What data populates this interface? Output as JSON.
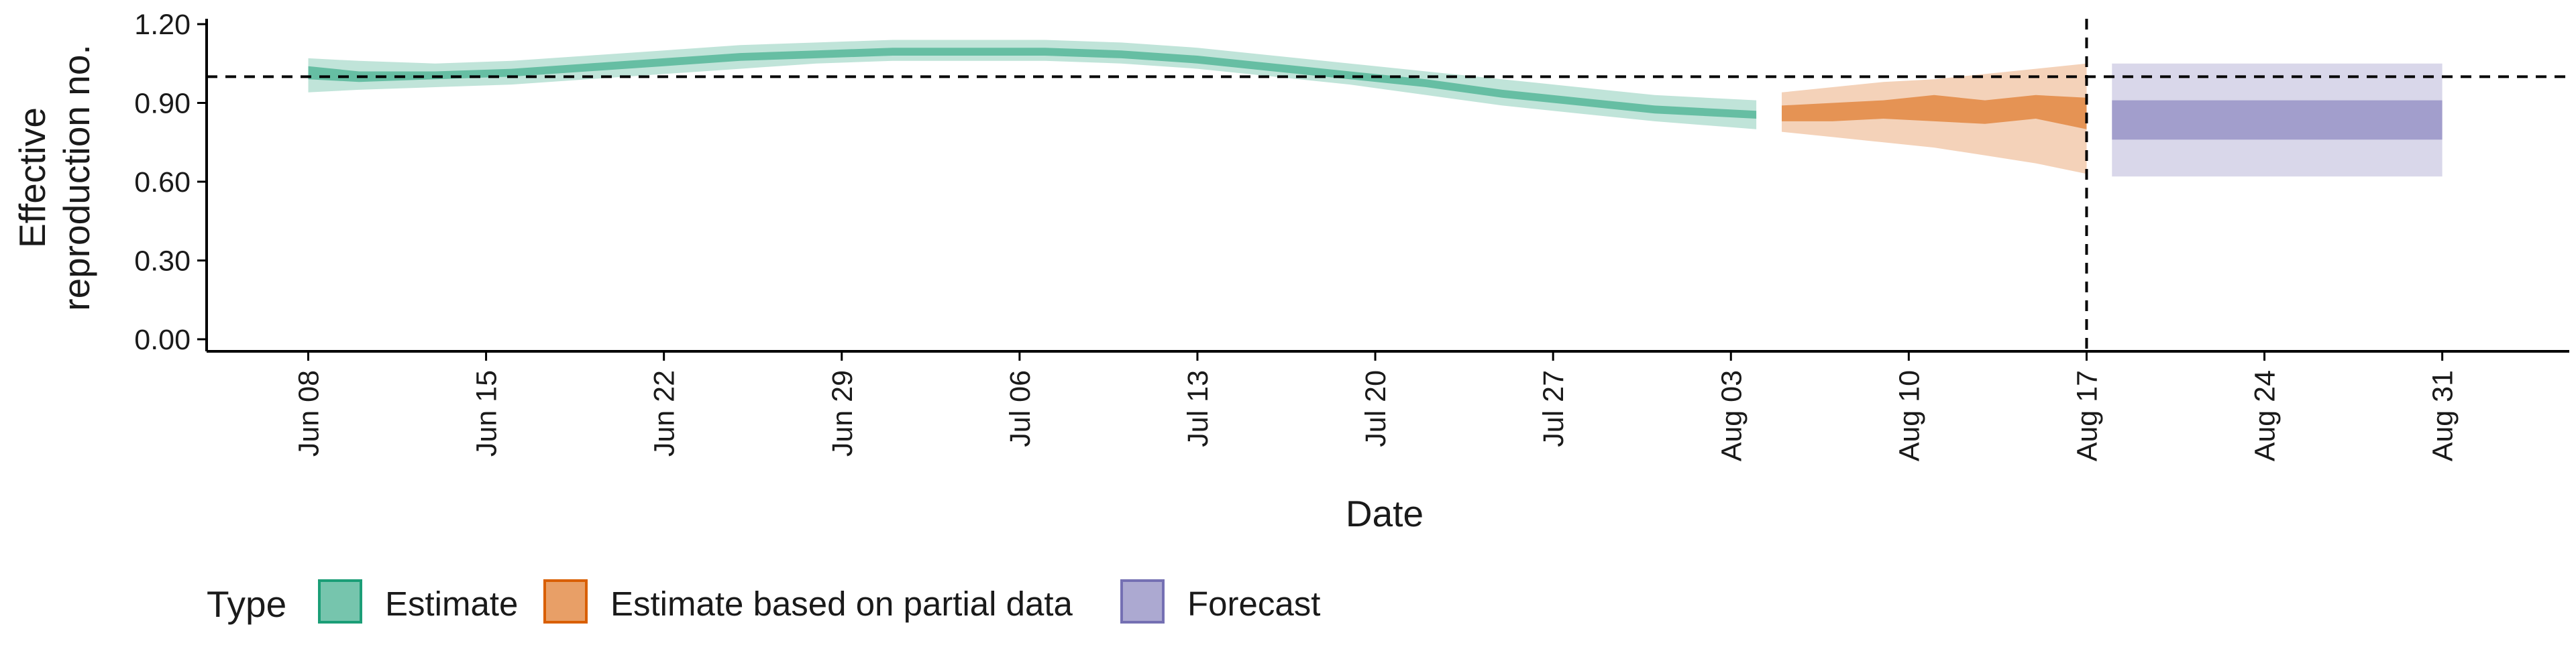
{
  "chart_data": {
    "type": "area",
    "xlabel": "Date",
    "ylabel": [
      "Effective",
      "reproduction no."
    ],
    "ylim": [
      0,
      1.2
    ],
    "y_ticks": [
      "0.00",
      "0.30",
      "0.60",
      "0.90",
      "1.20"
    ],
    "x_ticks": [
      {
        "date": "2020-06-08",
        "label": "Jun 08"
      },
      {
        "date": "2020-06-15",
        "label": "Jun 15"
      },
      {
        "date": "2020-06-22",
        "label": "Jun 22"
      },
      {
        "date": "2020-06-29",
        "label": "Jun 29"
      },
      {
        "date": "2020-07-06",
        "label": "Jul 06"
      },
      {
        "date": "2020-07-13",
        "label": "Jul 13"
      },
      {
        "date": "2020-07-20",
        "label": "Jul 20"
      },
      {
        "date": "2020-07-27",
        "label": "Jul 27"
      },
      {
        "date": "2020-08-03",
        "label": "Aug 03"
      },
      {
        "date": "2020-08-10",
        "label": "Aug 10"
      },
      {
        "date": "2020-08-17",
        "label": "Aug 17"
      },
      {
        "date": "2020-08-24",
        "label": "Aug 24"
      },
      {
        "date": "2020-08-31",
        "label": "Aug 31"
      }
    ],
    "x_range": [
      "2020-06-04",
      "2020-09-05"
    ],
    "reference_hline": 1.0,
    "reference_vline": "2020-08-17",
    "grid": false,
    "legend_position": "bottom-left",
    "legend_title": "Type",
    "series": [
      {
        "name": "Estimate",
        "color": "#1b9e77",
        "x": [
          "2020-06-08",
          "2020-06-10",
          "2020-06-13",
          "2020-06-16",
          "2020-06-19",
          "2020-06-22",
          "2020-06-25",
          "2020-06-28",
          "2020-07-01",
          "2020-07-04",
          "2020-07-07",
          "2020-07-10",
          "2020-07-13",
          "2020-07-16",
          "2020-07-19",
          "2020-07-22",
          "2020-07-25",
          "2020-07-28",
          "2020-07-31",
          "2020-08-04"
        ],
        "outer_lower": [
          0.94,
          0.95,
          0.96,
          0.97,
          0.99,
          1.01,
          1.03,
          1.05,
          1.06,
          1.06,
          1.06,
          1.05,
          1.03,
          1.0,
          0.97,
          0.93,
          0.89,
          0.86,
          0.83,
          0.8
        ],
        "outer_upper": [
          1.07,
          1.06,
          1.05,
          1.06,
          1.08,
          1.1,
          1.12,
          1.13,
          1.14,
          1.14,
          1.14,
          1.13,
          1.11,
          1.08,
          1.05,
          1.02,
          0.99,
          0.96,
          0.93,
          0.91
        ],
        "inner_lower": [
          0.99,
          0.98,
          0.99,
          1.0,
          1.02,
          1.04,
          1.06,
          1.07,
          1.08,
          1.08,
          1.08,
          1.07,
          1.05,
          1.02,
          0.99,
          0.96,
          0.92,
          0.89,
          0.86,
          0.84
        ],
        "inner_upper": [
          1.04,
          1.02,
          1.02,
          1.03,
          1.05,
          1.07,
          1.09,
          1.1,
          1.11,
          1.11,
          1.11,
          1.1,
          1.08,
          1.05,
          1.02,
          0.99,
          0.95,
          0.92,
          0.89,
          0.87
        ]
      },
      {
        "name": "Estimate based on partial data",
        "color": "#d95f02",
        "x": [
          "2020-08-05",
          "2020-08-07",
          "2020-08-09",
          "2020-08-11",
          "2020-08-13",
          "2020-08-15",
          "2020-08-17"
        ],
        "outer_lower": [
          0.79,
          0.77,
          0.75,
          0.73,
          0.7,
          0.67,
          0.63
        ],
        "outer_upper": [
          0.94,
          0.96,
          0.98,
          0.99,
          1.01,
          1.03,
          1.05
        ],
        "inner_lower": [
          0.83,
          0.83,
          0.84,
          0.83,
          0.82,
          0.84,
          0.8
        ],
        "inner_upper": [
          0.89,
          0.9,
          0.91,
          0.93,
          0.91,
          0.93,
          0.92
        ]
      },
      {
        "name": "Forecast",
        "color": "#7570b3",
        "x": [
          "2020-08-18",
          "2020-08-31"
        ],
        "outer_lower": [
          0.62,
          0.62
        ],
        "outer_upper": [
          1.05,
          1.05
        ],
        "inner_lower": [
          0.76,
          0.76
        ],
        "inner_upper": [
          0.91,
          0.91
        ]
      }
    ]
  }
}
